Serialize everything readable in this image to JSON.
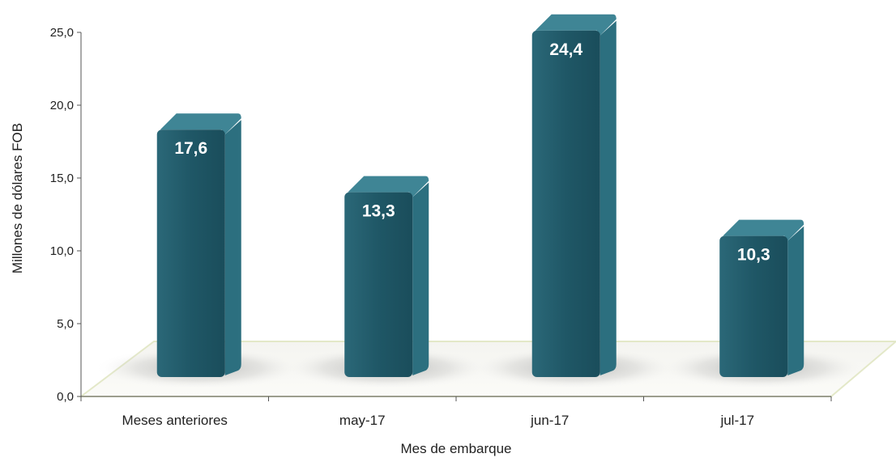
{
  "chart_data": {
    "type": "bar",
    "categories": [
      "Meses anteriores",
      "may-17",
      "jun-17",
      "jul-17"
    ],
    "values": [
      17.6,
      13.3,
      24.4,
      10.3
    ],
    "data_labels": [
      "17,6",
      "13,3",
      "24,4",
      "10,3"
    ],
    "title": "",
    "xlabel": "Mes de embarque",
    "ylabel": "Millones de dólares FOB",
    "ylim": [
      0,
      25
    ],
    "yticks": [
      {
        "value": 0,
        "label": "0,0"
      },
      {
        "value": 5,
        "label": "5,0"
      },
      {
        "value": 10,
        "label": "10,0"
      },
      {
        "value": 15,
        "label": "15,0"
      },
      {
        "value": 20,
        "label": "20,0"
      },
      {
        "value": 25,
        "label": "25,0"
      }
    ],
    "grid": false,
    "style": "3d",
    "colors": {
      "bar_front": "#1f5766",
      "bar_side": "#2c6f7f",
      "bar_top": "#3f8595"
    }
  }
}
